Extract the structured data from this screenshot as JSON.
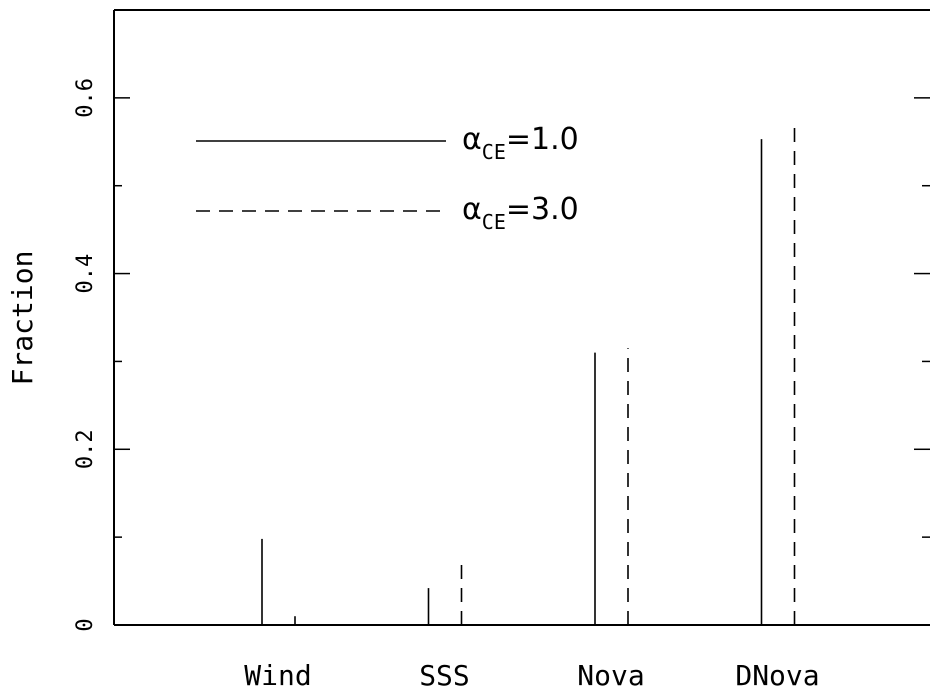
{
  "chart_data": {
    "type": "bar",
    "ylabel": "Fraction",
    "xlabel": "",
    "ylim": [
      0,
      0.7
    ],
    "yticks": [
      0,
      0.2,
      0.4,
      0.6
    ],
    "ytick_labels": [
      "0",
      "0.2",
      "0.4",
      "0.6"
    ],
    "categories": [
      "Wind",
      "SSS",
      "Nova",
      "DNova"
    ],
    "series": [
      {
        "name": "α_CE=1.0",
        "symbol": "α",
        "subscript": "CE",
        "value_text": "=1.0",
        "line_style": "solid",
        "values": [
          0.098,
          0.042,
          0.31,
          0.553
        ]
      },
      {
        "name": "α_CE=3.0",
        "symbol": "α",
        "subscript": "CE",
        "value_text": "=3.0",
        "line_style": "dashed",
        "values": [
          0.01,
          0.078,
          0.315,
          0.575
        ]
      }
    ],
    "legend_position": "top-left",
    "grid": false,
    "color": "#000000"
  }
}
